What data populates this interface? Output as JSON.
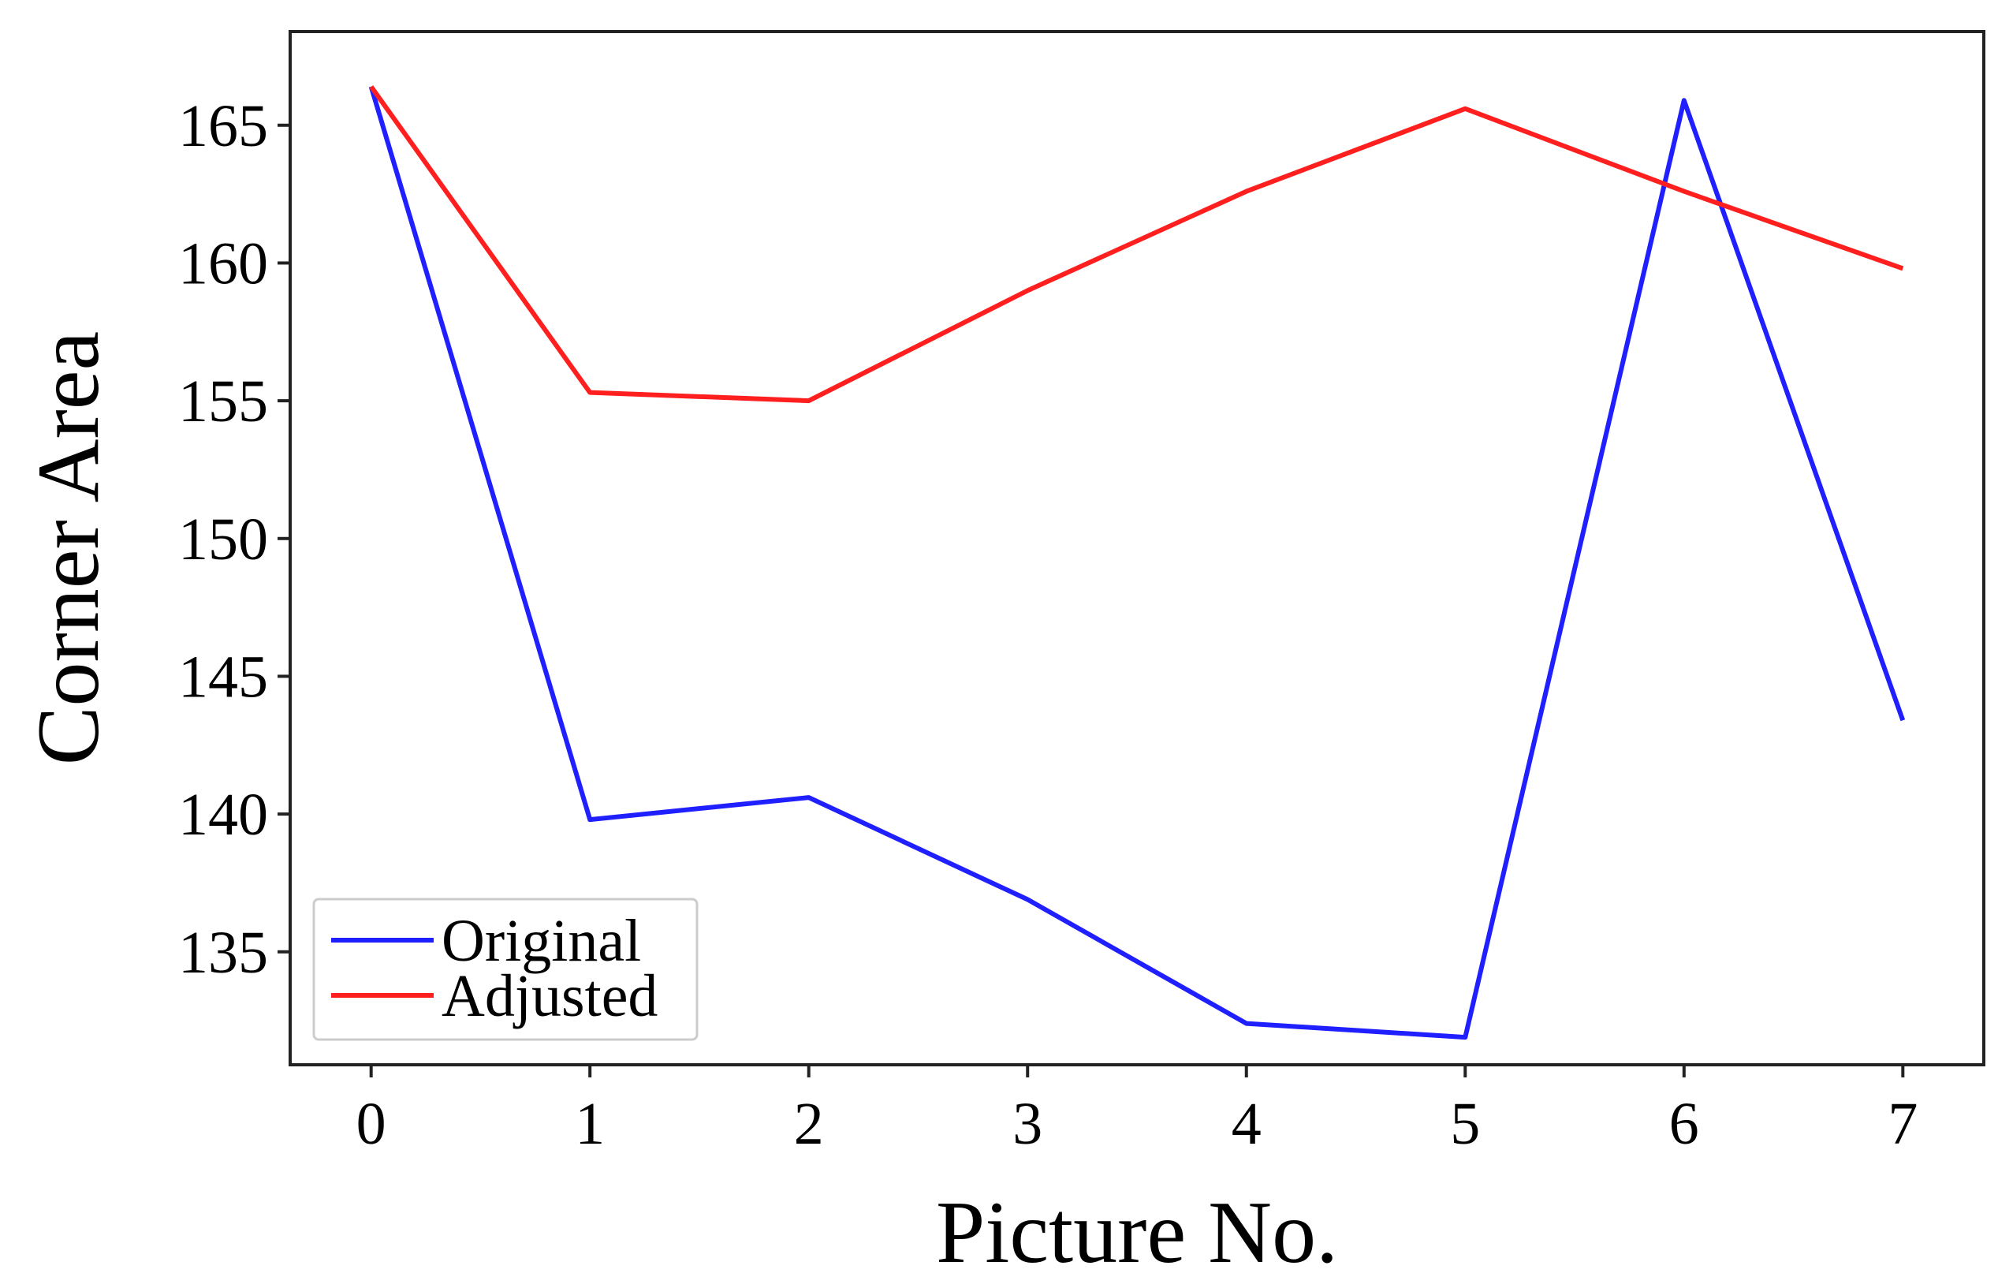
{
  "chart_data": {
    "type": "line",
    "title": "",
    "xlabel": "Picture No.",
    "ylabel": "Corner Area",
    "x": [
      0,
      1,
      2,
      3,
      4,
      5,
      6,
      7
    ],
    "xticks": [
      "0",
      "1",
      "2",
      "3",
      "4",
      "5",
      "6",
      "7"
    ],
    "yticks": [
      "135",
      "140",
      "145",
      "150",
      "155",
      "160",
      "165"
    ],
    "ytick_values": [
      135,
      140,
      145,
      150,
      155,
      160,
      165
    ],
    "xlim": [
      -0.37,
      7.37
    ],
    "ylim": [
      130.9,
      168.4
    ],
    "grid": false,
    "legend": {
      "position": "lower-left"
    },
    "series": [
      {
        "name": "Original",
        "color": "#1f1fff",
        "values": [
          166.4,
          139.8,
          140.6,
          136.9,
          132.4,
          131.9,
          165.9,
          143.4
        ]
      },
      {
        "name": "Adjusted",
        "color": "#ff1f1f",
        "values": [
          166.4,
          155.3,
          155.0,
          159.0,
          162.6,
          165.6,
          162.6,
          159.8
        ]
      }
    ]
  }
}
